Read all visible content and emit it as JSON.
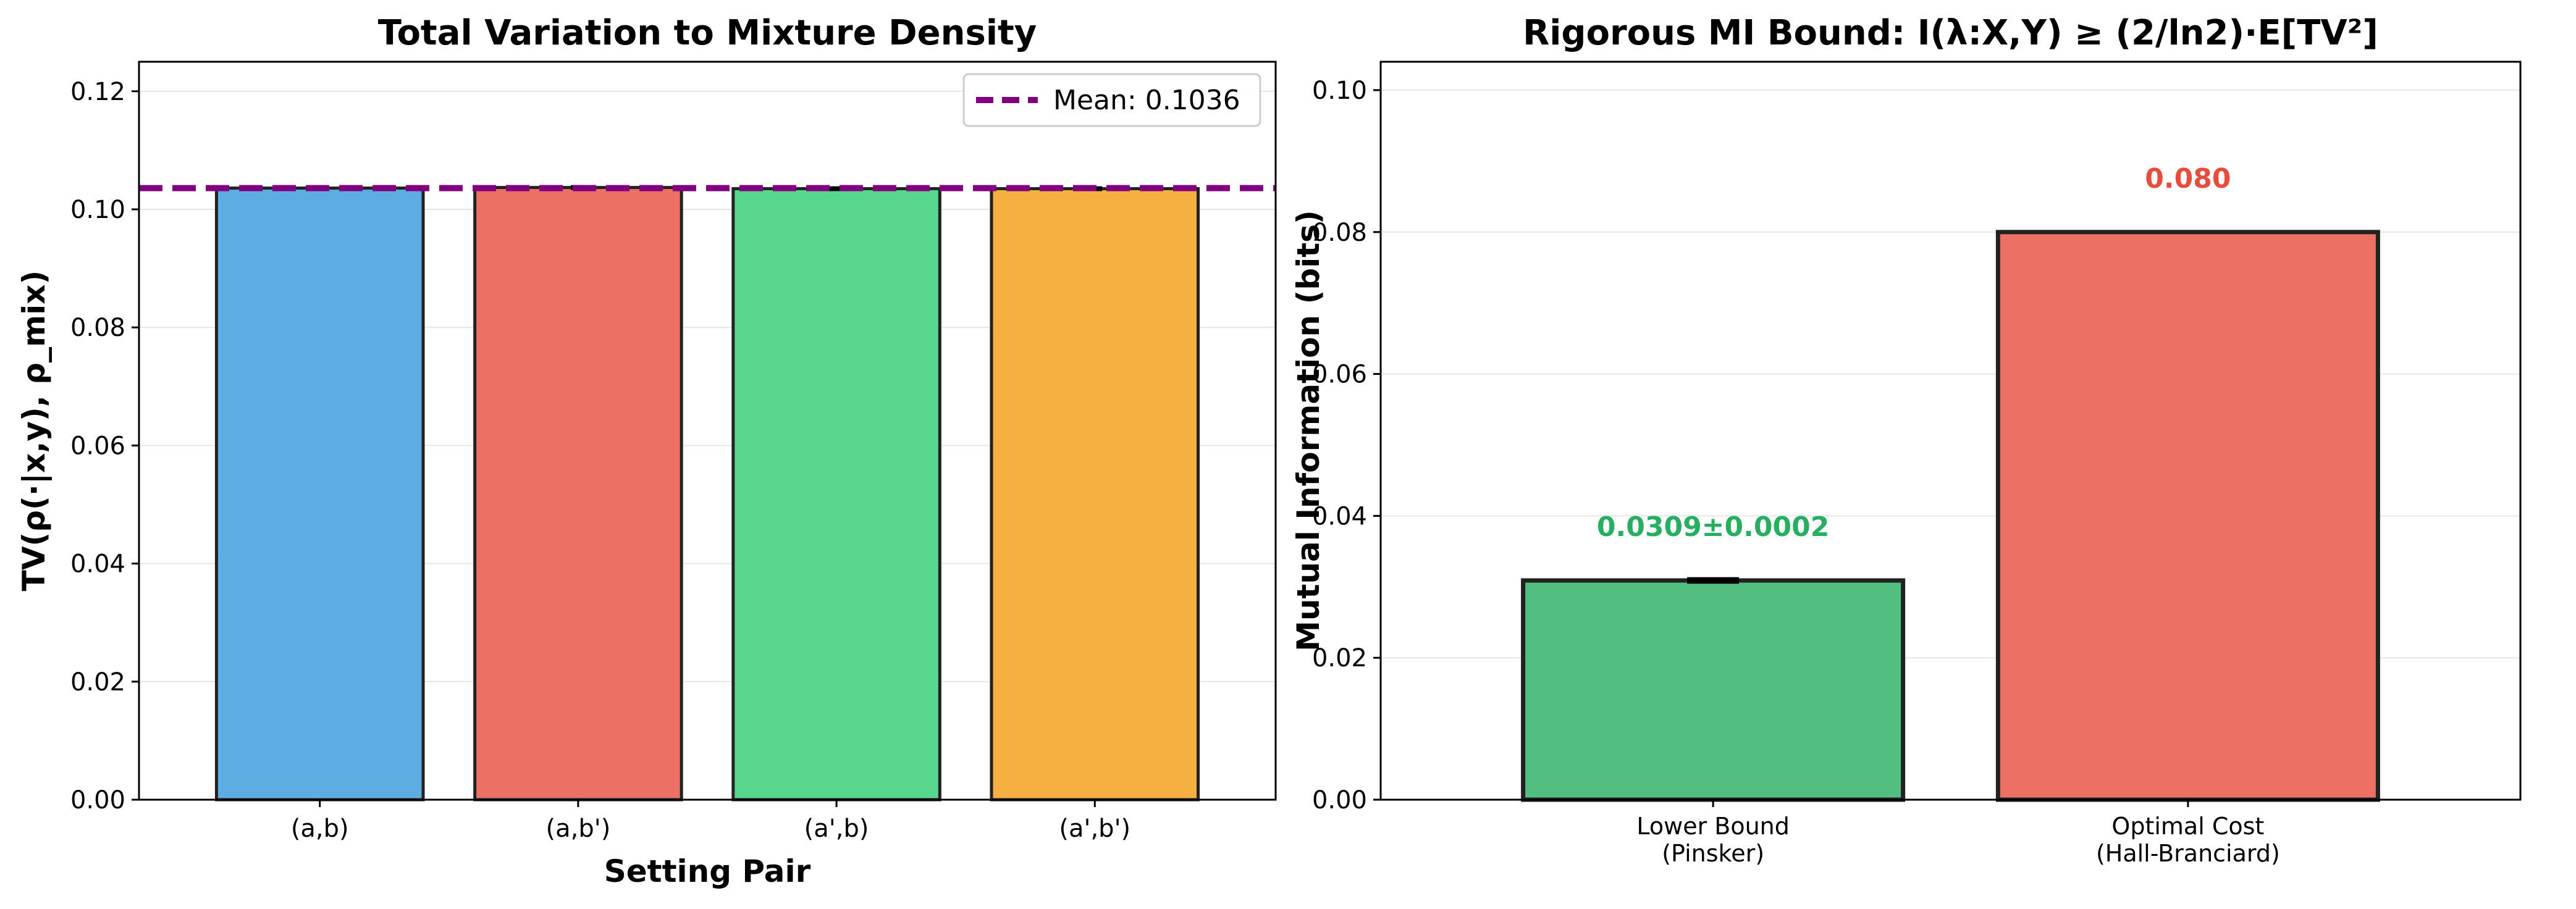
{
  "chart_data": [
    {
      "type": "bar",
      "title": "Total Variation to Mixture Density",
      "xlabel": "Setting Pair",
      "ylabel": "TV(ρ(·|x,y), ρ_mix)",
      "categories": [
        "(a,b)",
        "(a,b')",
        "(a',b)",
        "(a',b')"
      ],
      "values": [
        0.1036,
        0.1037,
        0.1035,
        0.1035
      ],
      "errors": [
        0.0002,
        0.0002,
        0.0002,
        0.0002
      ],
      "colors": [
        "#5dade2",
        "#ec7063",
        "#58d68d",
        "#f5b041"
      ],
      "ylim": [
        0,
        0.125
      ],
      "yticks": [
        0.0,
        0.02,
        0.04,
        0.06,
        0.08,
        0.1,
        0.12
      ],
      "ytick_labels": [
        "0.00",
        "0.02",
        "0.04",
        "0.06",
        "0.08",
        "0.10",
        "0.12"
      ],
      "grid": true,
      "mean_line": {
        "value": 0.1036,
        "label": "Mean: 0.1036",
        "color": "#800080",
        "style": "dashed"
      },
      "legend": "top-right"
    },
    {
      "type": "bar",
      "title": "Rigorous MI Bound: I(λ:X,Y) ≥ (2/ln2)·E[TV²]",
      "xlabel": "",
      "ylabel": "Mutual Information (bits)",
      "categories": [
        {
          "line1": "Lower Bound",
          "line2": "(Pinsker)"
        },
        {
          "line1": "Optimal Cost",
          "line2": "(Hall-Branciard)"
        }
      ],
      "values": [
        0.0309,
        0.08
      ],
      "errors": [
        0.0002,
        0
      ],
      "colors": [
        "#52be80",
        "#ec7063"
      ],
      "label_colors": [
        "#27ae60",
        "#e74c3c"
      ],
      "value_labels": [
        "0.0309±0.0002",
        "0.080"
      ],
      "ylim": [
        0,
        0.104
      ],
      "yticks": [
        0.0,
        0.02,
        0.04,
        0.06,
        0.08,
        0.1
      ],
      "ytick_labels": [
        "0.00",
        "0.02",
        "0.04",
        "0.06",
        "0.08",
        "0.10"
      ],
      "grid": true
    }
  ]
}
